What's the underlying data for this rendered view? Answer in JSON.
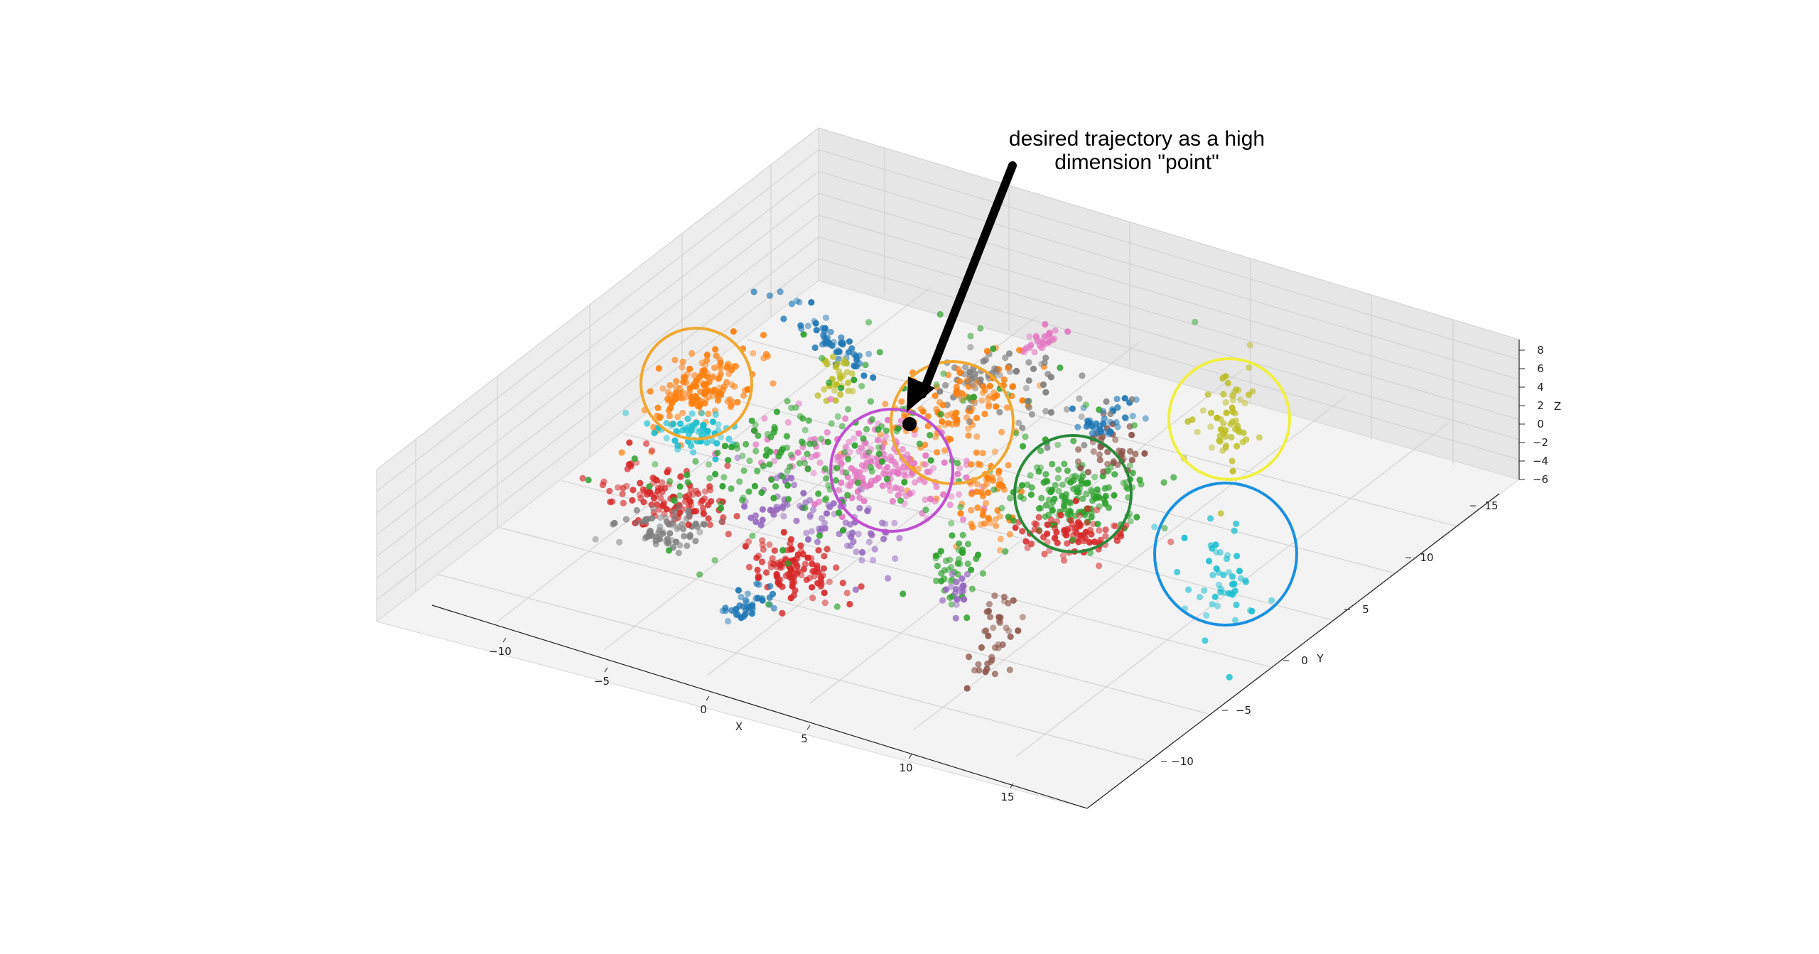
{
  "chart_data": {
    "type": "scatter",
    "dimensions": 3,
    "title": "",
    "xlabel": "X",
    "ylabel": "Y",
    "zlabel": "Z",
    "xlim": [
      -14,
      19
    ],
    "ylim": [
      -14,
      16
    ],
    "zlim": [
      -6.5,
      9
    ],
    "x_ticks": [
      "−10",
      "−5",
      "0",
      "5",
      "10",
      "15"
    ],
    "y_ticks": [
      "−10",
      "−5",
      "0",
      "5",
      "10",
      "15"
    ],
    "z_ticks": [
      "−6",
      "−4",
      "−2",
      "0",
      "2",
      "4",
      "6",
      "8"
    ],
    "grid": true,
    "legend": "none",
    "palette": [
      "#1f77b4",
      "#ff7f0e",
      "#2ca02c",
      "#d62728",
      "#9467bd",
      "#8c564b",
      "#e377c2",
      "#7f7f7f",
      "#bcbd22",
      "#17becf"
    ],
    "annotation": {
      "lines": [
        "desired trajectory as a high",
        "dimension \"point\""
      ]
    },
    "highlight_circles": [
      {
        "color": "#f0a830",
        "label": "orange-cluster-left"
      },
      {
        "color": "#f0a830",
        "label": "orange-cluster-center"
      },
      {
        "color": "#c050d0",
        "label": "pink-cluster-center"
      },
      {
        "color": "#2a8a3a",
        "label": "green-cluster-right"
      },
      {
        "color": "#f0f040",
        "label": "yellow-cluster-right"
      },
      {
        "color": "#1a90e0",
        "label": "cyan-cluster-right"
      }
    ]
  }
}
